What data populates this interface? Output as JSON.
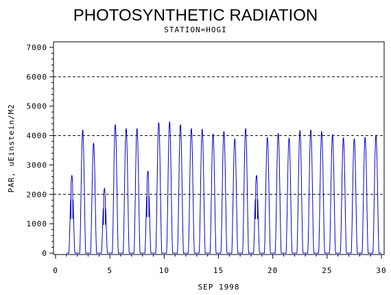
{
  "chart_data": {
    "type": "line",
    "title": "PHOTOSYNTHETIC RADIATION",
    "subtitle": "STATION=HOGI",
    "xlabel": "SEP 1998",
    "ylabel": "PAR, uEinstein/M2",
    "xlim": [
      0,
      30
    ],
    "ylim": [
      0,
      7000
    ],
    "x_ticks": [
      0,
      5,
      10,
      15,
      20,
      25,
      30
    ],
    "y_ticks": [
      0,
      1000,
      2000,
      3000,
      4000,
      5000,
      6000,
      7000
    ],
    "reference_lines": [
      2000,
      4000,
      6000
    ],
    "grid": false,
    "series": [
      {
        "color": "#0000cc",
        "daily_peaks": [
          {
            "day": 1,
            "peak": 2650
          },
          {
            "day": 2,
            "peak": 4200
          },
          {
            "day": 3,
            "peak": 3750
          },
          {
            "day": 4,
            "peak": 2200
          },
          {
            "day": 5,
            "peak": 4380
          },
          {
            "day": 6,
            "peak": 4250
          },
          {
            "day": 7,
            "peak": 4250
          },
          {
            "day": 8,
            "peak": 2800
          },
          {
            "day": 9,
            "peak": 4450
          },
          {
            "day": 10,
            "peak": 4480
          },
          {
            "day": 11,
            "peak": 4380
          },
          {
            "day": 12,
            "peak": 4250
          },
          {
            "day": 13,
            "peak": 4230
          },
          {
            "day": 14,
            "peak": 4060
          },
          {
            "day": 15,
            "peak": 4150
          },
          {
            "day": 16,
            "peak": 3900
          },
          {
            "day": 17,
            "peak": 4250
          },
          {
            "day": 18,
            "peak": 2650
          },
          {
            "day": 19,
            "peak": 3950
          },
          {
            "day": 20,
            "peak": 4080
          },
          {
            "day": 21,
            "peak": 3920
          },
          {
            "day": 22,
            "peak": 4180
          },
          {
            "day": 23,
            "peak": 4200
          },
          {
            "day": 24,
            "peak": 4150
          },
          {
            "day": 25,
            "peak": 4050
          },
          {
            "day": 26,
            "peak": 3930
          },
          {
            "day": 27,
            "peak": 3900
          },
          {
            "day": 28,
            "peak": 3950
          },
          {
            "day": 29,
            "peak": 4020
          }
        ]
      }
    ]
  }
}
